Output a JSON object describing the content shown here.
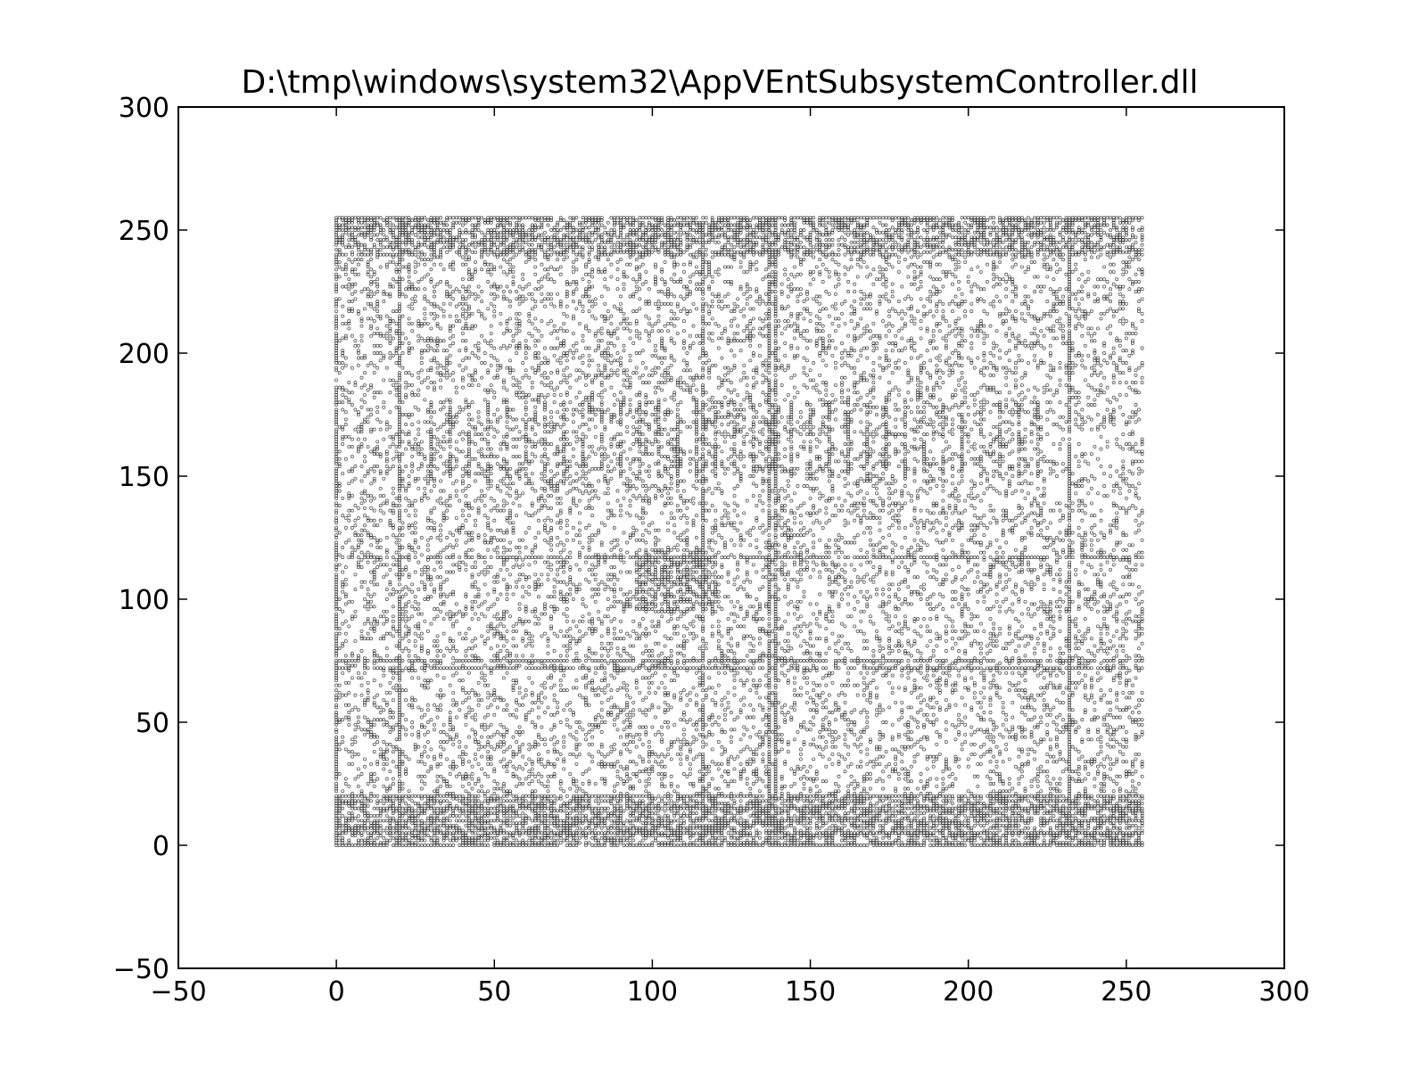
{
  "chart_data": {
    "type": "scatter",
    "title": "D:\\tmp\\windows\\system32\\AppVEntSubsystemController.dll",
    "xlabel": "",
    "ylabel": "",
    "xlim": [
      -50,
      300
    ],
    "ylim": [
      -50,
      300
    ],
    "x_ticks": [
      -50,
      0,
      50,
      100,
      150,
      200,
      250,
      300
    ],
    "y_ticks": [
      -50,
      0,
      50,
      100,
      150,
      200,
      250,
      300
    ],
    "x_tick_labels": [
      "−50",
      "0",
      "50",
      "100",
      "150",
      "200",
      "250",
      "300"
    ],
    "y_tick_labels": [
      "−50",
      "0",
      "50",
      "100",
      "150",
      "200",
      "250",
      "300"
    ],
    "grid": false,
    "legend": "none",
    "marker_color": "#000000",
    "data_extent": {
      "x": [
        0,
        255
      ],
      "y": [
        0,
        255
      ]
    },
    "dense_columns_x": [
      0,
      20,
      116,
      137,
      139,
      232
    ],
    "dense_rows_y": [
      0,
      5,
      10,
      15,
      20,
      72,
      75,
      117,
      255
    ],
    "dense_blocks": [
      {
        "x": [
          95,
          120
        ],
        "y": [
          95,
          120
        ]
      },
      {
        "x": [
          0,
          255
        ],
        "y": [
          0,
          20
        ]
      },
      {
        "x": [
          0,
          255
        ],
        "y": [
          240,
          255
        ]
      }
    ]
  }
}
